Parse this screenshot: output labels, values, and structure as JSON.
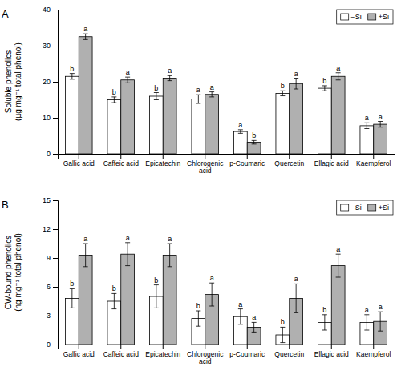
{
  "chart_data": [
    {
      "type": "bar",
      "categories": [
        "Gallic acid",
        "Caffeic acid",
        "Epicatechin",
        "Chlorogenic\nacid",
        "p-Coumaric",
        "Quercetin",
        "Ellagic acid",
        "Kaempferol"
      ],
      "series": [
        {
          "name": "–Si",
          "color": "#ffffff",
          "values": [
            21.5,
            15.0,
            16.0,
            15.2,
            6.2,
            16.8,
            18.2,
            7.8
          ],
          "errors": [
            0.8,
            0.8,
            1.0,
            1.2,
            0.5,
            0.7,
            0.7,
            0.8
          ],
          "letters": [
            "b",
            "b",
            "b",
            "a",
            "a",
            "b",
            "b",
            "a"
          ]
        },
        {
          "name": "+Si",
          "color": "#b0b0b0",
          "values": [
            32.5,
            20.5,
            21.0,
            16.5,
            3.2,
            19.5,
            21.5,
            8.2
          ],
          "errors": [
            0.8,
            0.8,
            0.7,
            0.7,
            0.5,
            1.5,
            1.0,
            0.8
          ],
          "letters": [
            "a",
            "a",
            "a",
            "a",
            "b",
            "a",
            "a",
            "a"
          ]
        }
      ],
      "ylabel": "Soluble phenolics\n(µg mg⁻¹ total phenol)",
      "ylim": [
        0,
        40
      ],
      "yticks": [
        0,
        10,
        20,
        30,
        40
      ],
      "annotations": [
        "A"
      ],
      "legend": "upper right",
      "grid": false
    },
    {
      "type": "bar",
      "categories": [
        "Gallic acid",
        "Caffeic acid",
        "Epicatechin",
        "Chlorogenic\nacid",
        "p-Coumaric",
        "Quercetin",
        "Ellagic acid",
        "Kaempferol"
      ],
      "series": [
        {
          "name": "–Si",
          "color": "#ffffff",
          "values": [
            4.8,
            4.5,
            5.0,
            2.7,
            2.9,
            1.0,
            2.3,
            2.3
          ],
          "errors": [
            1.0,
            0.8,
            1.2,
            0.8,
            0.8,
            0.8,
            0.8,
            0.8
          ],
          "letters": [
            "b",
            "b",
            "b",
            "b",
            "a",
            "b",
            "b",
            "a"
          ]
        },
        {
          "name": "+Si",
          "color": "#b0b0b0",
          "values": [
            9.3,
            9.4,
            9.3,
            5.2,
            1.8,
            4.8,
            8.2,
            2.4
          ],
          "errors": [
            1.2,
            1.2,
            1.2,
            1.2,
            0.5,
            1.5,
            1.2,
            1.0
          ],
          "letters": [
            "a",
            "a",
            "a",
            "a",
            "a",
            "a",
            "a",
            "a"
          ]
        }
      ],
      "ylabel": "CW-bound phenolics\n(ng mg⁻¹ total phenol)",
      "ylim": [
        0,
        15
      ],
      "yticks": [
        0,
        3,
        6,
        9,
        12,
        15
      ],
      "annotations": [
        "B"
      ],
      "legend": "upper right",
      "grid": false
    }
  ]
}
